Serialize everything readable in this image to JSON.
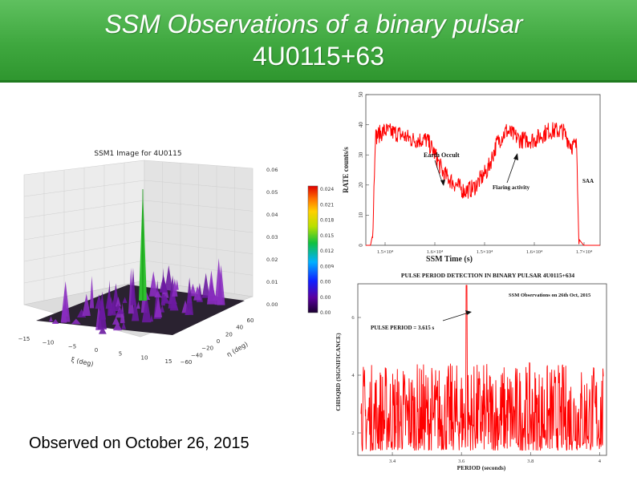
{
  "title": {
    "line1": "SSM Observations of a binary pulsar",
    "line2": "4U0115+63"
  },
  "caption": "Observed on October 26, 2015",
  "colors": {
    "band_top": "#5fc05f",
    "band_bottom": "#2f962f",
    "trace": "#ff0000",
    "spike": "#2fbf2f"
  },
  "chart_data": [
    {
      "type": "surface",
      "title": "SSM1 Image for 4U0115",
      "xlabel": "ξ (deg)",
      "ylabel": "η (deg)",
      "x_ticks": [
        "−15",
        "−10",
        "−5",
        "0",
        "5",
        "10",
        "15"
      ],
      "y_ticks": [
        "−60",
        "−40",
        "−20",
        "0",
        "20",
        "40",
        "60"
      ],
      "z_ticks": [
        "0.00",
        "0.01",
        "0.02",
        "0.03",
        "0.04",
        "0.05",
        "0.06"
      ],
      "colorbar_ticks": [
        "0.000",
        "0.003",
        "0.006",
        "0.009",
        "0.012",
        "0.015",
        "0.018",
        "0.021",
        "0.024"
      ],
      "peak": {
        "xi": 0,
        "eta": 0,
        "z": 0.06
      }
    },
    {
      "type": "line",
      "xlabel": "SSM Time (s)",
      "ylabel": "RATE counts/s",
      "ylim": [
        0,
        50
      ],
      "y_ticks": [
        "0",
        "10",
        "20",
        "30",
        "40",
        "50"
      ],
      "x_ticks": [
        "1.5×10⁴",
        "1.6×10⁴",
        "1.5×10⁴",
        "1.6×10⁴",
        "1.7×10⁴"
      ],
      "annotations": [
        "Earth Occult",
        "Flaring activity",
        "SAA"
      ],
      "profile": [
        [
          0.0,
          0
        ],
        [
          0.02,
          0
        ],
        [
          0.03,
          4
        ],
        [
          0.04,
          36
        ],
        [
          0.08,
          38
        ],
        [
          0.14,
          37
        ],
        [
          0.2,
          35
        ],
        [
          0.26,
          35
        ],
        [
          0.29,
          31
        ],
        [
          0.33,
          24
        ],
        [
          0.37,
          21
        ],
        [
          0.42,
          18
        ],
        [
          0.46,
          19
        ],
        [
          0.52,
          25
        ],
        [
          0.56,
          34
        ],
        [
          0.6,
          38
        ],
        [
          0.66,
          35
        ],
        [
          0.72,
          35
        ],
        [
          0.78,
          38
        ],
        [
          0.84,
          38
        ],
        [
          0.88,
          33
        ],
        [
          0.9,
          33
        ],
        [
          0.91,
          2
        ],
        [
          0.93,
          0
        ],
        [
          1.0,
          0
        ]
      ]
    },
    {
      "type": "line",
      "title": "PULSE PERIOD DETECTION IN BINARY PULSAR 4U0115+634",
      "subtitle": "SSM Observations on 26th Oct, 2015",
      "xlabel": "PERIOD (seconds)",
      "ylabel": "CHISQRD (SIGNIFICANCE)",
      "x_ticks": [
        "3.4",
        "3.6",
        "3.8",
        "4"
      ],
      "y_ticks": [
        "2",
        "4",
        "6"
      ],
      "annotation": "PULSE PERIOD = 3.615 s",
      "peak_x": 3.615
    }
  ]
}
